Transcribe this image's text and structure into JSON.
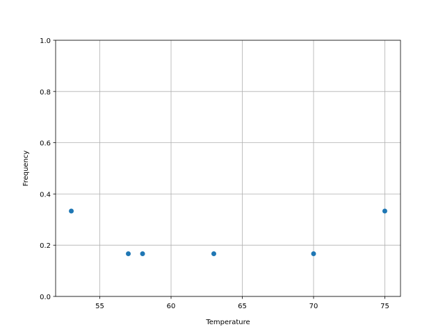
{
  "chart_data": {
    "type": "scatter",
    "title": "",
    "xlabel": "Temperature",
    "ylabel": "Frequency",
    "x": [
      53,
      57,
      58,
      63,
      70,
      75
    ],
    "y": [
      0.3333,
      0.1667,
      0.1667,
      0.1667,
      0.1667,
      0.3333
    ],
    "xlim": [
      51.9,
      76.1
    ],
    "ylim": [
      0,
      1
    ],
    "xticks": [
      55,
      60,
      65,
      70,
      75
    ],
    "xtick_labels": [
      "55",
      "60",
      "65",
      "70",
      "75"
    ],
    "yticks": [
      0,
      0.2,
      0.4,
      0.6,
      0.8,
      1.0
    ],
    "ytick_labels": [
      "0.0",
      "0.2",
      "0.4",
      "0.6",
      "0.8",
      "1.0"
    ],
    "grid": true,
    "marker_color": "#1f77b4"
  }
}
